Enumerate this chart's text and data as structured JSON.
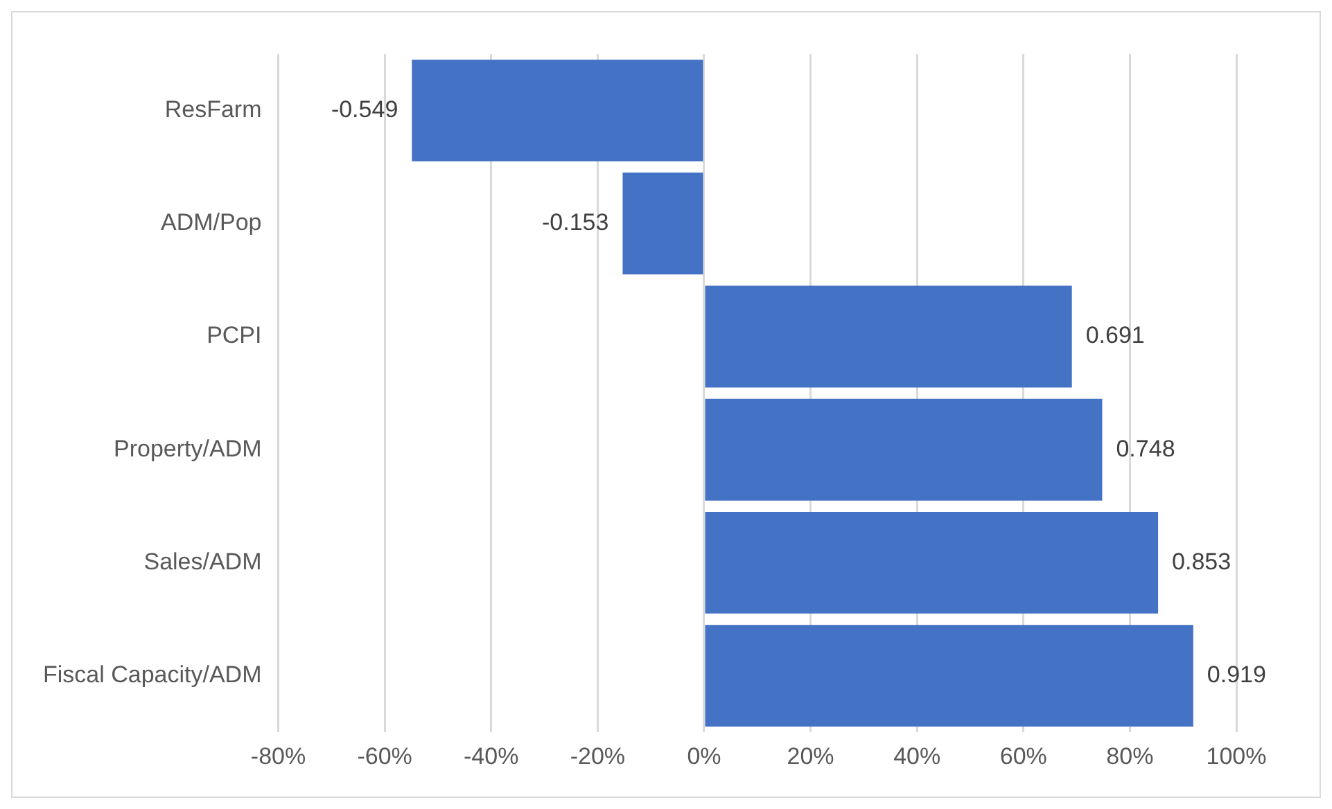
{
  "chart_data": {
    "type": "bar",
    "orientation": "horizontal",
    "categories": [
      "ResFarm",
      "ADM/Pop",
      "PCPI",
      "Property/ADM",
      "Sales/ADM",
      "Fiscal Capacity/ADM"
    ],
    "values": [
      -0.549,
      -0.153,
      0.691,
      0.748,
      0.853,
      0.919
    ],
    "color": "#4472c4",
    "xlim": [
      -0.8,
      1.0
    ],
    "xticks": [
      {
        "value": -0.8,
        "label": "-80%"
      },
      {
        "value": -0.6,
        "label": "-60%"
      },
      {
        "value": -0.4,
        "label": "-40%"
      },
      {
        "value": -0.2,
        "label": "-20%"
      },
      {
        "value": 0,
        "label": "0%"
      },
      {
        "value": 0.2,
        "label": "20%"
      },
      {
        "value": 0.4,
        "label": "40%"
      },
      {
        "value": 0.6,
        "label": "60%"
      },
      {
        "value": 0.8,
        "label": "80%"
      },
      {
        "value": 1.0,
        "label": "100%"
      }
    ],
    "grid": "x",
    "legend": false,
    "data_labels": true
  }
}
